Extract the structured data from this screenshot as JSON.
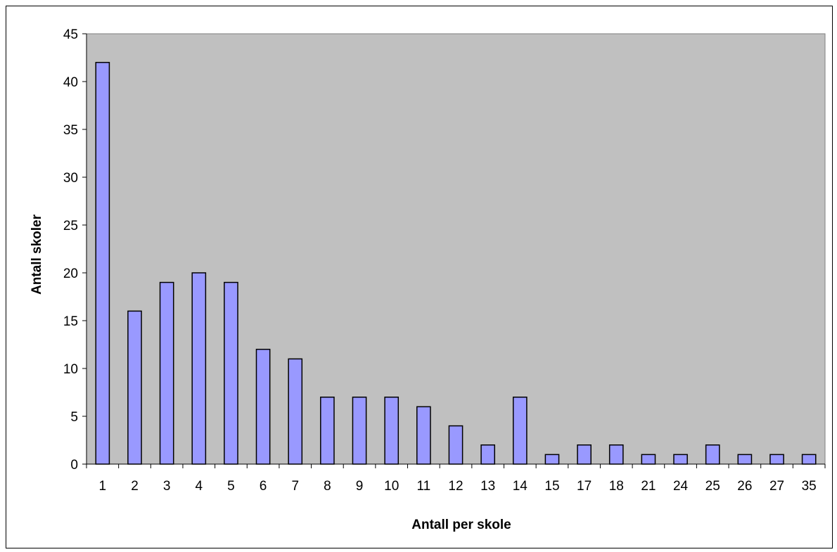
{
  "chart_data": {
    "type": "bar",
    "title": "",
    "xlabel": "Antall per skole",
    "ylabel": "Antall skoler",
    "categories": [
      "1",
      "2",
      "3",
      "4",
      "5",
      "6",
      "7",
      "8",
      "9",
      "10",
      "11",
      "12",
      "13",
      "14",
      "15",
      "17",
      "18",
      "21",
      "24",
      "25",
      "26",
      "27",
      "35"
    ],
    "values": [
      42,
      16,
      19,
      20,
      19,
      12,
      11,
      7,
      7,
      7,
      6,
      4,
      2,
      7,
      1,
      2,
      2,
      1,
      1,
      2,
      1,
      1,
      1
    ],
    "ylim": [
      0,
      45
    ],
    "yticks": [
      0,
      5,
      10,
      15,
      20,
      25,
      30,
      35,
      40,
      45
    ],
    "grid": false,
    "legend": "none",
    "colors": {
      "plot_background": "#c0c0c0",
      "bar_fill": "#9999ff",
      "bar_stroke": "#000000"
    }
  }
}
